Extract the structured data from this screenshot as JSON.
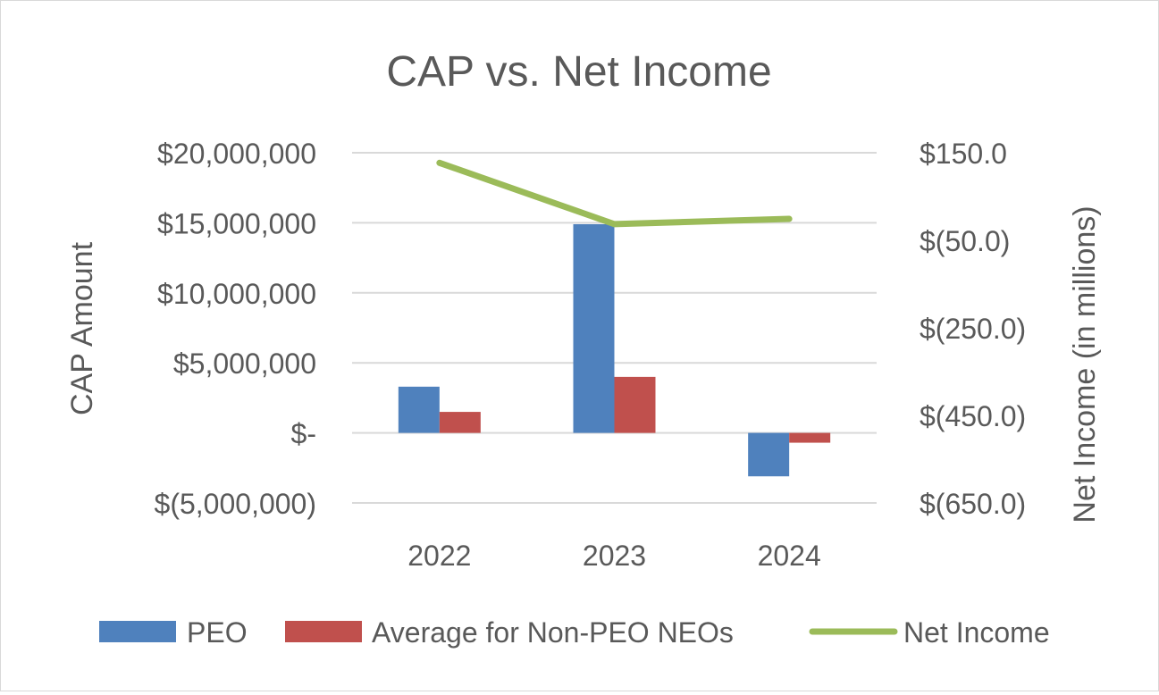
{
  "chart_data": {
    "type": "bar",
    "title": "CAP vs. Net Income",
    "categories": [
      "2022",
      "2023",
      "2024"
    ],
    "series": [
      {
        "name": "PEO",
        "kind": "bar",
        "axis": "left",
        "color": "#4f81bd",
        "values": [
          3300000,
          14900000,
          -3100000
        ]
      },
      {
        "name": "Average for Non-PEO NEOs",
        "kind": "bar",
        "axis": "left",
        "color": "#c0504d",
        "values": [
          1500000,
          4000000,
          -700000
        ]
      },
      {
        "name": "Net Income",
        "kind": "line",
        "axis": "right",
        "color": "#9bbb59",
        "values": [
          127.0,
          -13.0,
          -1.0
        ]
      }
    ],
    "y_left": {
      "label": "CAP Amount",
      "range": [
        -5000000,
        20000000
      ],
      "ticks": [
        20000000,
        15000000,
        10000000,
        5000000,
        0,
        -5000000
      ],
      "tick_labels": [
        "$20,000,000",
        "$15,000,000",
        "$10,000,000",
        "$5,000,000",
        "$-",
        "$(5,000,000)"
      ]
    },
    "y_right": {
      "label": "Net Income (in millions)",
      "range": [
        -650.0,
        150.0
      ],
      "ticks": [
        150.0,
        -50.0,
        -250.0,
        -450.0,
        -650.0
      ],
      "tick_labels": [
        "$150.0",
        "$(50.0)",
        "$(250.0)",
        "$(450.0)",
        "$(650.0)"
      ]
    },
    "grid": true,
    "legend_position": "bottom"
  }
}
